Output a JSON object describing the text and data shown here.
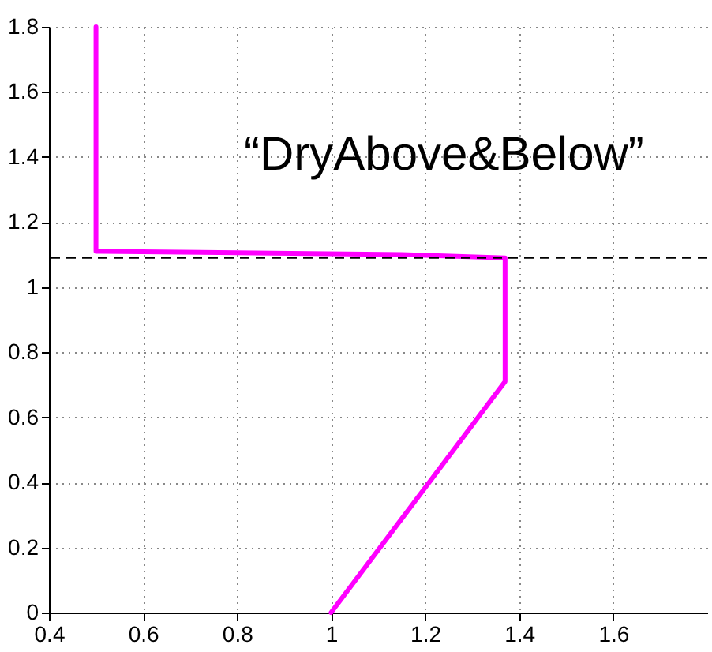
{
  "chart_data": {
    "type": "line",
    "annotations": [
      "“DryAbove&Below”"
    ],
    "x": [
      0.5,
      0.5,
      0.51,
      1.15,
      1.37,
      1.37,
      1.0
    ],
    "series": [
      {
        "color": "#ff00ff",
        "values": [
          1.8,
          1.11,
          1.11,
          1.1,
          1.09,
          0.71,
          0
        ]
      }
    ],
    "xlim": [
      0.4,
      1.8
    ],
    "xticks": [
      0.4,
      0.6,
      0.8,
      1,
      1.2,
      1.4,
      1.6
    ],
    "ylim": [
      0,
      1.8
    ],
    "yticks": [
      0,
      0.2,
      0.4,
      0.6,
      0.8,
      1,
      1.2,
      1.4,
      1.6,
      1.8
    ],
    "ref_lines": [
      {
        "axis": "y",
        "value": 1.09,
        "color": "#000000",
        "line_style": "dashed"
      }
    ],
    "grid": true,
    "line_style": "solid",
    "marker": "none"
  }
}
